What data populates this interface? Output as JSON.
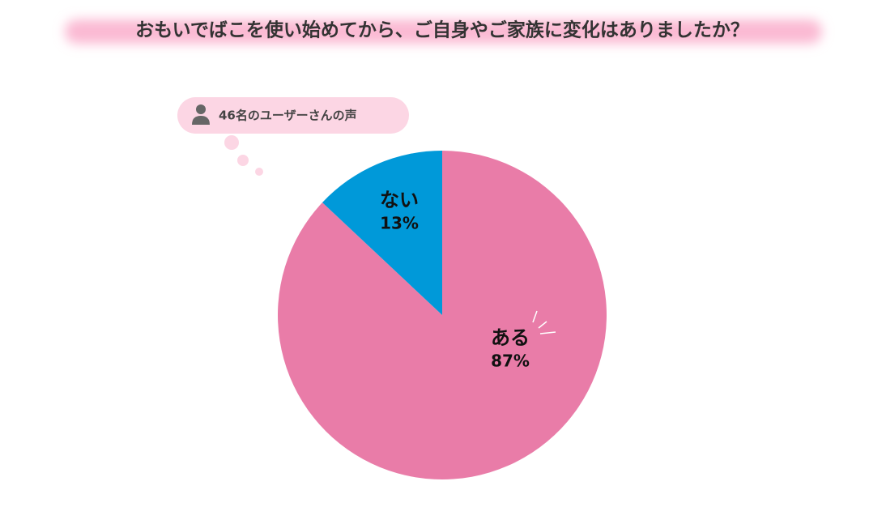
{
  "chart_data": {
    "type": "pie",
    "title": "おもいでばこを使い始めてから、ご自身やご家族に変化はありましたか？",
    "annotation": "46名のユーザーさんの声",
    "categories": [
      "ある",
      "ない"
    ],
    "values": [
      87,
      13
    ],
    "value_labels": [
      "87%",
      "13%"
    ],
    "colors": [
      "#e97ca8",
      "#0099d9"
    ]
  }
}
